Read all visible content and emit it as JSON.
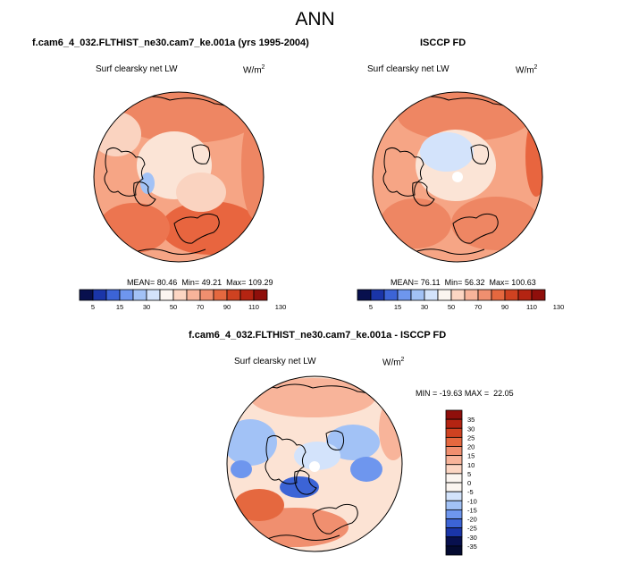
{
  "figure": {
    "title": "ANN",
    "panels": [
      {
        "title": "f.cam6_4_032.FLTHIST_ne30.cam7_ke.001a (yrs 1995-2004)",
        "field": "Surf clearsky net LW",
        "units_base": "W/m",
        "units_exp": "2",
        "stats": {
          "mean_label": "MEAN=",
          "mean": "80.46",
          "min_label": "Min=",
          "min": "49.21",
          "max_label": "Max=",
          "max": "109.29"
        }
      },
      {
        "title": "ISCCP FD",
        "field": "Surf clearsky net LW",
        "units_base": "W/m",
        "units_exp": "2",
        "stats": {
          "mean_label": "MEAN=",
          "mean": "76.11",
          "min_label": "Min=",
          "min": "56.32",
          "max_label": "Max=",
          "max": "100.63"
        }
      },
      {
        "title": "f.cam6_4_032.FLTHIST_ne30.cam7_ke.001a - ISCCP FD",
        "field": "Surf clearsky net LW",
        "units_base": "W/m",
        "units_exp": "2",
        "stats": {
          "min_label": "MIN =",
          "min": "-19.63",
          "max_label": "MAX =",
          "max": "22.05"
        }
      }
    ],
    "abs_colorbar": {
      "labels": [
        "5",
        "15",
        "30",
        "50",
        "70",
        "90",
        "110",
        "130"
      ],
      "colors": [
        "#08104e",
        "#1a35a8",
        "#3c64d6",
        "#6e96ee",
        "#a2c2f6",
        "#d3e3fb",
        "#fbf5f0",
        "#fcd6c3",
        "#f8b49a",
        "#f08f6f",
        "#e5683f",
        "#cf4221",
        "#b42412",
        "#8f0f0b"
      ]
    },
    "diff_colorbar": {
      "labels": [
        "35",
        "30",
        "25",
        "20",
        "15",
        "10",
        "5",
        "0",
        "-5",
        "-10",
        "-15",
        "-20",
        "-25",
        "-30",
        "-35"
      ],
      "colors": [
        "#8f0f0b",
        "#b42412",
        "#cf4221",
        "#e5683f",
        "#f08f6f",
        "#f8b49a",
        "#fcd6c3",
        "#fbf5f0",
        "#fbf5f0",
        "#d3e3fb",
        "#a2c2f6",
        "#6e96ee",
        "#3c64d6",
        "#1a35a8",
        "#08104e",
        "#040a30"
      ]
    }
  }
}
